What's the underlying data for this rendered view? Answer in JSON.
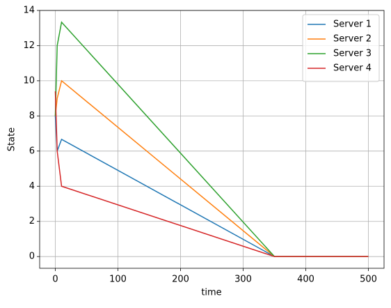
{
  "chart_data": {
    "type": "line",
    "x_label": "time",
    "y_label": "State",
    "x": [
      0,
      3,
      10,
      350,
      500
    ],
    "series": [
      {
        "name": "Server 1",
        "color": "#1f77b4",
        "values": [
          8,
          6,
          6.67,
          0,
          0
        ]
      },
      {
        "name": "Server 2",
        "color": "#ff7f0e",
        "values": [
          8,
          9,
          10,
          0,
          0
        ]
      },
      {
        "name": "Server 3",
        "color": "#2ca02c",
        "values": [
          8,
          12,
          13.33,
          0,
          0
        ]
      },
      {
        "name": "Server 4",
        "color": "#d62728",
        "values": [
          9.4,
          6,
          4,
          0,
          0
        ]
      }
    ],
    "xlim": [
      -25,
      525
    ],
    "xticks": [
      0,
      100,
      200,
      300,
      400,
      500
    ],
    "ylim": [
      -0.667,
      14
    ],
    "yticks": [
      0,
      2,
      4,
      6,
      8,
      10,
      12,
      14
    ],
    "grid": true,
    "legend": "upper right"
  }
}
